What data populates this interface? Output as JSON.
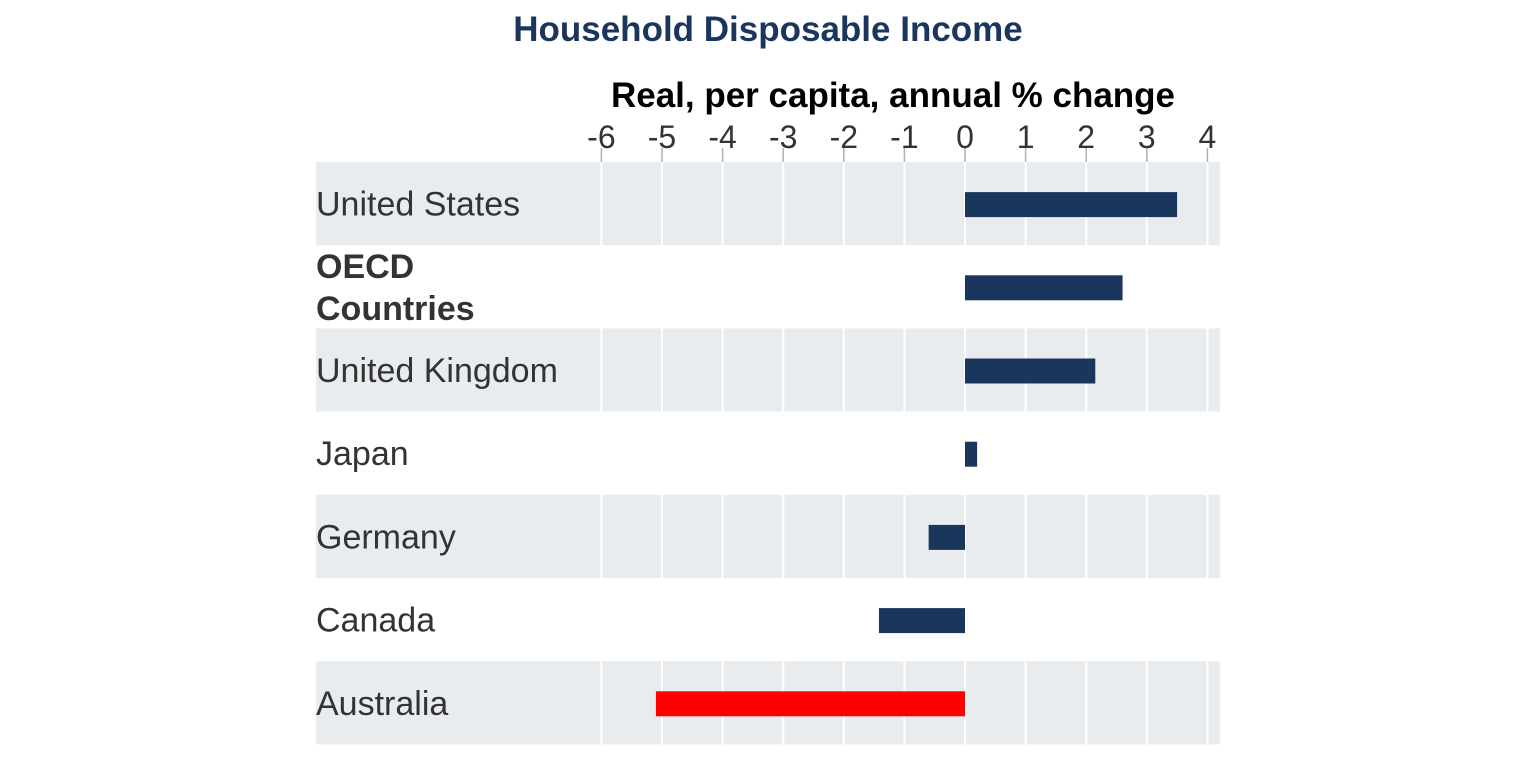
{
  "chart_data": {
    "type": "bar",
    "orientation": "horizontal",
    "title": "Household Disposable Income",
    "xlabel": "Real, per capita, annual % change",
    "ylabel": "",
    "xlim": [
      -6,
      4
    ],
    "xticks": [
      -6,
      -5,
      -4,
      -3,
      -2,
      -1,
      0,
      1,
      2,
      3,
      4
    ],
    "xtick_labels": [
      "-6",
      "-5",
      "-4",
      "-3",
      "-2",
      "-1",
      "0",
      "1",
      "2",
      "3",
      "4"
    ],
    "x_axis_position": "top",
    "grid": true,
    "legend": "none",
    "categories": [
      {
        "label": "United States",
        "lines": [
          "United States"
        ],
        "value": 3.5,
        "bold": false,
        "highlight": false
      },
      {
        "label": "OECD Countries",
        "lines": [
          "OECD",
          "Countries"
        ],
        "value": 2.6,
        "bold": true,
        "highlight": false
      },
      {
        "label": "United Kingdom",
        "lines": [
          "United Kingdom"
        ],
        "value": 2.15,
        "bold": false,
        "highlight": false
      },
      {
        "label": "Japan",
        "lines": [
          "Japan"
        ],
        "value": 0.2,
        "bold": false,
        "highlight": false
      },
      {
        "label": "Germany",
        "lines": [
          "Germany"
        ],
        "value": -0.6,
        "bold": false,
        "highlight": false
      },
      {
        "label": "Canada",
        "lines": [
          "Canada"
        ],
        "value": -1.42,
        "bold": false,
        "highlight": false
      },
      {
        "label": "Australia",
        "lines": [
          "Australia"
        ],
        "value": -5.1,
        "bold": false,
        "highlight": true
      }
    ],
    "colors": {
      "bar": "#1b365d",
      "highlight_bar": "#ff0000",
      "band": "#e9ecef",
      "grid": "#ffffff",
      "title": "#1b365d"
    }
  }
}
